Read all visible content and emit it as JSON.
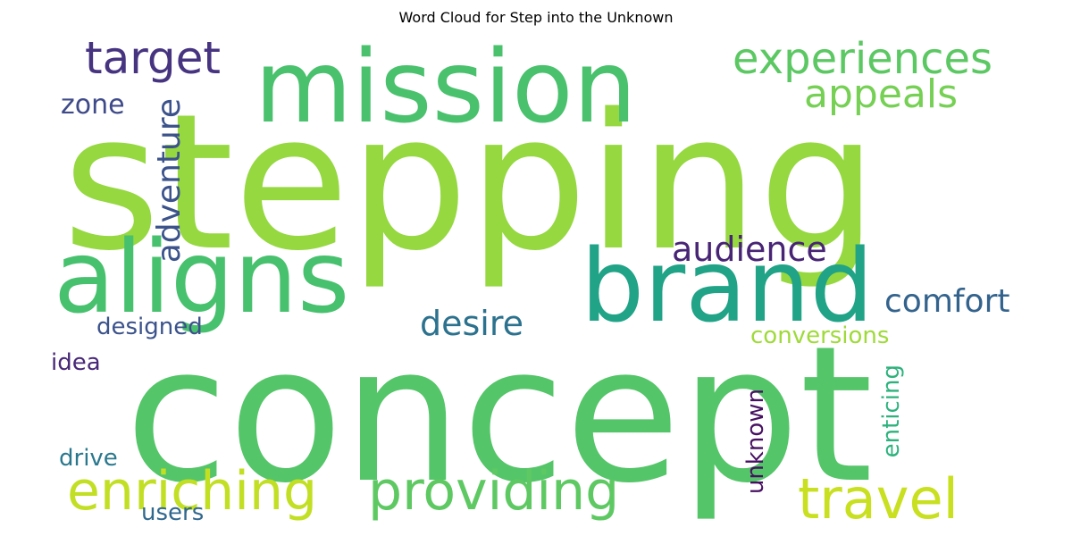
{
  "title": "Word Cloud for Step into the Unknown",
  "words": [
    {
      "text": "stepping",
      "color": "#95d840"
    },
    {
      "text": "concept",
      "color": "#54c568"
    },
    {
      "text": "mission",
      "color": "#4ac16d"
    },
    {
      "text": "aligns",
      "color": "#48c16e"
    },
    {
      "text": "brand",
      "color": "#20a386"
    },
    {
      "text": "providing",
      "color": "#5ec962"
    },
    {
      "text": "enriching",
      "color": "#c2df23"
    },
    {
      "text": "travel",
      "color": "#c8e020"
    },
    {
      "text": "experiences",
      "color": "#5cc863"
    },
    {
      "text": "appeals",
      "color": "#75d054"
    },
    {
      "text": "target",
      "color": "#463480"
    },
    {
      "text": "adventure",
      "color": "#3b528b"
    },
    {
      "text": "audience",
      "color": "#482475"
    },
    {
      "text": "desire",
      "color": "#2c728e"
    },
    {
      "text": "comfort",
      "color": "#33638d"
    },
    {
      "text": "zone",
      "color": "#3e4a89"
    },
    {
      "text": "designed",
      "color": "#3b528b"
    },
    {
      "text": "conversions",
      "color": "#9fda3a"
    },
    {
      "text": "idea",
      "color": "#482878"
    },
    {
      "text": "enticing",
      "color": "#2db27d"
    },
    {
      "text": "unknown",
      "color": "#471063"
    },
    {
      "text": "drive",
      "color": "#2a788e"
    },
    {
      "text": "users",
      "color": "#31688e"
    }
  ]
}
